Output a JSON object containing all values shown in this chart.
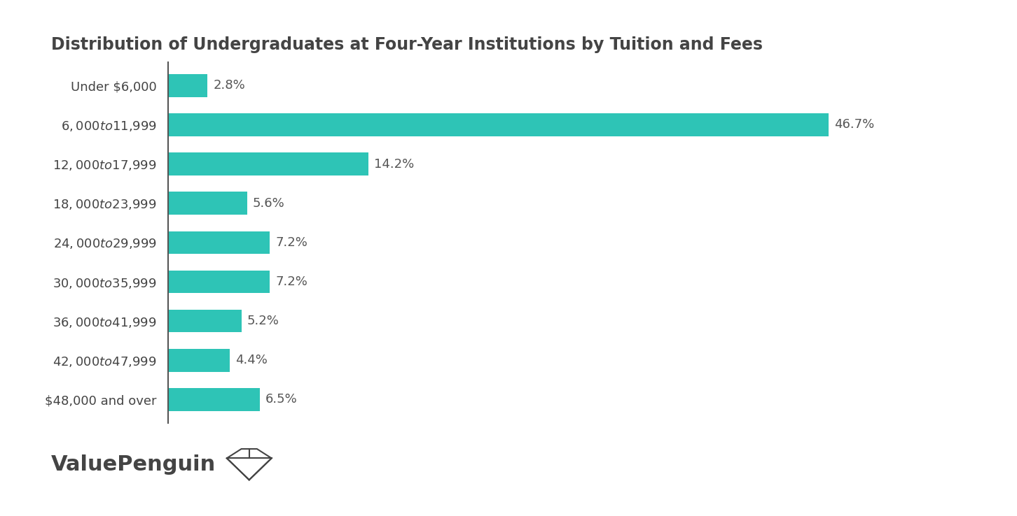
{
  "title": "Distribution of Undergraduates at Four-Year Institutions by Tuition and Fees",
  "categories": [
    "Under $6,000",
    "$6,000 to $11,999",
    "$12,000 to $17,999",
    "$18,000 to $23,999",
    "$24,000 to $29,999",
    "$30,000 to $35,999",
    "$36,000 to $41,999",
    "$42,000 to $47,999",
    "$48,000 and over"
  ],
  "values": [
    2.8,
    46.7,
    14.2,
    5.6,
    7.2,
    7.2,
    5.2,
    4.4,
    6.5
  ],
  "labels": [
    "2.8%",
    "46.7%",
    "14.2%",
    "5.6%",
    "7.2%",
    "7.2%",
    "5.2%",
    "4.4%",
    "6.5%"
  ],
  "bar_color": "#2EC4B6",
  "background_color": "#ffffff",
  "title_color": "#444444",
  "label_color": "#555555",
  "axis_line_color": "#555555",
  "title_fontsize": 17,
  "label_fontsize": 13,
  "tick_fontsize": 13,
  "watermark_text": "ValuePenguin",
  "watermark_fontsize": 22,
  "bar_height": 0.58,
  "xlim": 55
}
